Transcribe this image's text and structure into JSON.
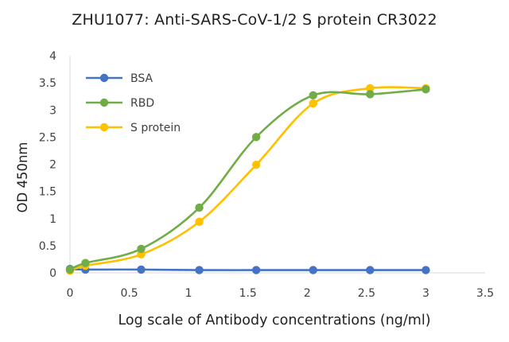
{
  "chart_data": {
    "type": "line",
    "title": "ZHU1077:  Anti-SARS-CoV-1/2 S protein CR3022",
    "xlabel": "Log scale of Antibody concentrations (ng/ml)",
    "ylabel": "OD 450nm",
    "xlim": [
      0,
      3.5
    ],
    "ylim": [
      0,
      4
    ],
    "x_ticks": [
      "0",
      "0.5",
      "1",
      "1.5",
      "2",
      "2.5",
      "3",
      "3.5"
    ],
    "y_ticks": [
      "0",
      "0.5",
      "1",
      "1.5",
      "2",
      "2.5",
      "3",
      "3.5",
      "4"
    ],
    "grid": false,
    "smooth": true,
    "legend_position": "top-left",
    "x": [
      0,
      0.13,
      0.6,
      1.09,
      1.57,
      2.05,
      2.53,
      3.0
    ],
    "series": [
      {
        "name": "BSA",
        "color": "#4472C4",
        "values": [
          0.07,
          0.06,
          0.06,
          0.05,
          0.05,
          0.05,
          0.05,
          0.05
        ]
      },
      {
        "name": "RBD",
        "color": "#70AD47",
        "values": [
          0.06,
          0.18,
          0.44,
          1.2,
          2.5,
          3.27,
          3.29,
          3.38
        ]
      },
      {
        "name": "S protein",
        "color": "#FFC000",
        "values": [
          0.04,
          0.13,
          0.34,
          0.94,
          1.99,
          3.12,
          3.4,
          3.4
        ]
      }
    ]
  }
}
